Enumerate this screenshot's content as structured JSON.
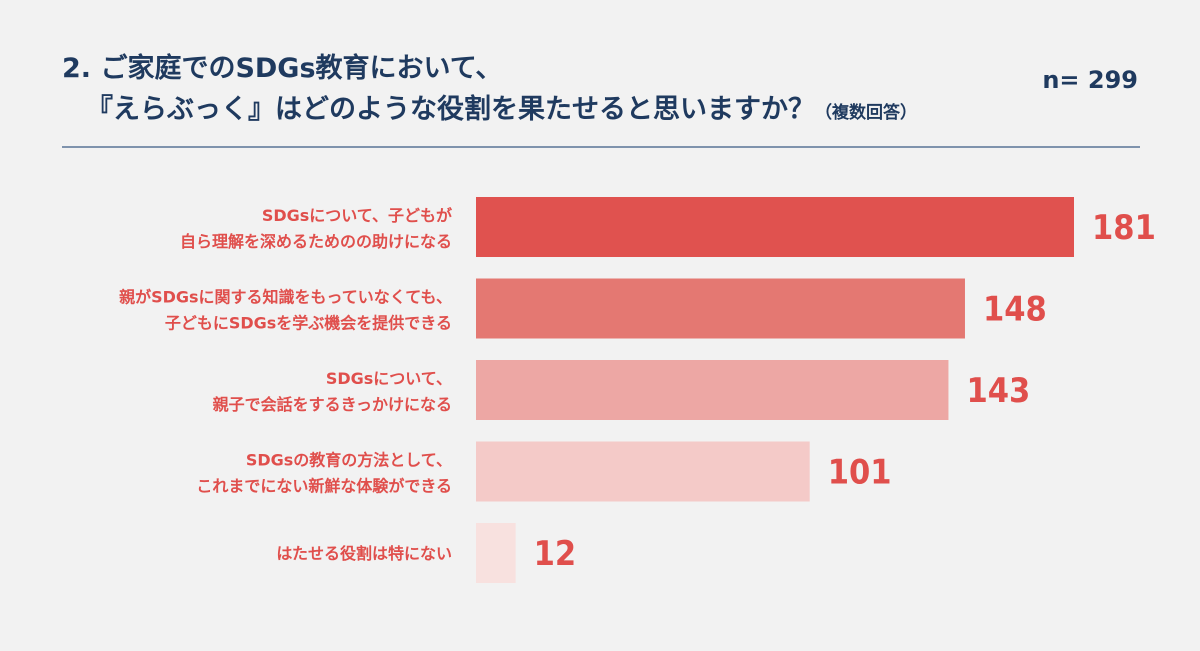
{
  "header": {
    "title_line1": "2. ご家庭でのSDGs教育において、",
    "title_line2": "『えらぶっく』はどのような役割を果たせると思いますか？",
    "title_note": "（複数回答）",
    "n": "n= 299"
  },
  "colors": [
    "#e0524f",
    "#e47872",
    "#eda7a4",
    "#f4cac8",
    "#f8e1df"
  ],
  "chart_data": {
    "type": "bar",
    "orientation": "horizontal",
    "categories": [
      [
        "SDGsについて、子どもが",
        "自ら理解を深めるためのの助けになる"
      ],
      [
        "親がSDGsに関する知識をもっていなくても、",
        "子どもにSDGsを学ぶ機会を提供できる"
      ],
      [
        "SDGsについて、",
        "親子で会話をするきっかけになる"
      ],
      [
        "SDGsの教育の方法として、",
        "これまでにない新鮮な体験ができる"
      ],
      [
        "はたせる役割は特にない"
      ]
    ],
    "values": [
      181,
      148,
      143,
      101,
      12
    ],
    "value_labels": [
      "181",
      "148",
      "143",
      "101",
      "12"
    ],
    "xlim": [
      0,
      181
    ],
    "grid": false
  }
}
